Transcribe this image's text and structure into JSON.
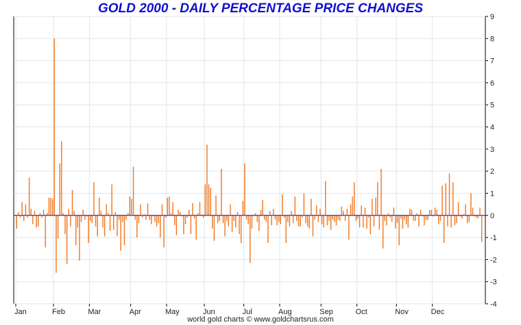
{
  "chart_data": {
    "type": "bar",
    "title": "GOLD 2000 - DAILY PERCENTAGE PRICE CHANGES",
    "footer": "world gold charts © www.goldchartsrus.com",
    "xlabel": "",
    "ylabel": "",
    "ylim": [
      -4,
      9
    ],
    "yticks": [
      "-4",
      "-3",
      "-2",
      "-1",
      "0",
      "1",
      "2",
      "3",
      "4",
      "5",
      "6",
      "7",
      "8",
      "9"
    ],
    "grid": true,
    "zero_line_color": "#3030d0",
    "bar_color": "#f07820",
    "months": [
      {
        "label": "Jan",
        "day_index": 0
      },
      {
        "label": "Feb",
        "day_index": 21
      },
      {
        "label": "Mar",
        "day_index": 41
      },
      {
        "label": "Apr",
        "day_index": 64
      },
      {
        "label": "May",
        "day_index": 84
      },
      {
        "label": "Jun",
        "day_index": 105
      },
      {
        "label": "Jul",
        "day_index": 127
      },
      {
        "label": "Aug",
        "day_index": 147
      },
      {
        "label": "Sep",
        "day_index": 170
      },
      {
        "label": "Oct",
        "day_index": 190
      },
      {
        "label": "Nov",
        "day_index": 212
      },
      {
        "label": "Dec",
        "day_index": 232
      }
    ],
    "series": [
      {
        "name": "Daily % change",
        "values": [
          -0.6,
          0.15,
          -0.1,
          0.6,
          -0.25,
          0.5,
          -0.1,
          1.7,
          0.3,
          -0.4,
          0.2,
          -0.55,
          -0.5,
          0.1,
          -0.1,
          0.25,
          -1.45,
          0.1,
          0.8,
          0.8,
          0.75,
          8.0,
          -2.6,
          -1.05,
          2.35,
          3.35,
          0.1,
          -0.85,
          -2.2,
          0.3,
          -0.5,
          1.15,
          0.2,
          -1.35,
          -0.55,
          -2.05,
          -0.3,
          0.25,
          -0.2,
          -0.05,
          -1.25,
          -0.25,
          -0.35,
          1.5,
          -0.5,
          -0.95,
          0.8,
          0.2,
          -0.55,
          -0.95,
          0.5,
          0.1,
          -0.7,
          1.4,
          -0.65,
          0.15,
          -0.95,
          -0.2,
          -1.6,
          -0.3,
          -1.35,
          -0.2,
          0.1,
          0.85,
          0.75,
          2.2,
          -0.2,
          -1.0,
          -0.35,
          0.5,
          -0.1,
          0.05,
          -0.2,
          0.55,
          -0.2,
          -0.4,
          -0.05,
          -0.3,
          -0.5,
          -0.35,
          -1.0,
          0.5,
          -1.45,
          -0.1,
          0.8,
          0.85,
          0.1,
          0.6,
          -0.45,
          -0.9,
          0.25,
          0.15,
          -0.05,
          -0.85,
          -0.4,
          -0.1,
          0.25,
          -0.85,
          0.55,
          -0.15,
          -1.1,
          0.1,
          0.6,
          0.05,
          -0.1,
          1.4,
          3.2,
          1.4,
          1.25,
          -0.6,
          -1.15,
          0.9,
          -0.35,
          -0.25,
          2.1,
          -0.35,
          -0.95,
          -0.25,
          -0.5,
          0.5,
          -0.75,
          -0.25,
          -0.55,
          0.15,
          -0.85,
          -1.25,
          0.65,
          2.35,
          -0.2,
          -0.4,
          -2.15,
          -0.6,
          -0.05,
          0.1,
          -0.3,
          -0.7,
          0.25,
          0.7,
          -0.2,
          -0.3,
          -1.25,
          0.2,
          -0.45,
          0.3,
          -0.2,
          -0.45,
          -0.3,
          -0.4,
          0.95,
          -0.1,
          -1.25,
          -0.3,
          -0.5,
          0.2,
          -0.35,
          0.85,
          -0.25,
          -0.5,
          -0.5,
          -0.1,
          1.0,
          -0.35,
          -0.5,
          -0.6,
          0.75,
          -0.95,
          -0.2,
          0.45,
          -0.3,
          0.3,
          -0.4,
          -0.55,
          1.55,
          -0.45,
          -0.25,
          -0.65,
          -0.2,
          -0.3,
          -0.45,
          -0.2,
          -0.25,
          0.4,
          0.2,
          -0.25,
          0.3,
          -1.1,
          0.5,
          0.85,
          1.5,
          -0.25,
          -0.15,
          -0.55,
          0.45,
          -0.55,
          0.35,
          -0.6,
          -0.1,
          -0.85,
          0.75,
          -0.5,
          0.8,
          1.5,
          -0.65,
          2.1,
          -1.5,
          -0.25,
          -0.45,
          0.1,
          -0.1,
          -0.3,
          0.35,
          -0.6,
          -0.35,
          -1.35,
          -0.15,
          -0.6,
          -0.2,
          -0.4,
          -0.55,
          0.3,
          0.25,
          -0.25,
          -0.25,
          0.1,
          -0.5,
          0.25,
          -0.05,
          -0.45,
          -0.2,
          -0.2,
          0.25,
          0.25,
          -0.05,
          0.35,
          0.25,
          -0.4,
          -0.25,
          1.35,
          -1.25,
          1.45,
          -0.5,
          1.9,
          -0.55,
          1.5,
          -0.45,
          -0.35,
          0.6,
          -0.05,
          -0.15,
          0.05,
          0.5,
          -0.35,
          -0.3,
          1.0,
          0.35,
          -0.05,
          -0.1,
          -0.15,
          0.35,
          -1.2
        ]
      }
    ]
  }
}
